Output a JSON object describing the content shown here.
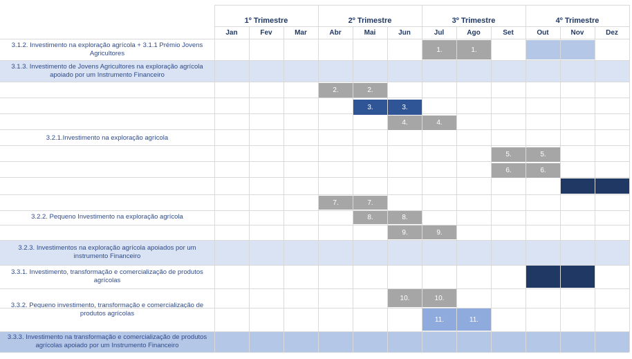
{
  "header": {
    "quarters": [
      "1º Trimestre",
      "2º Trimestre",
      "3º Trimestre",
      "4º Trimestre"
    ],
    "months": [
      "Jan",
      "Fev",
      "Mar",
      "Abr",
      "Mai",
      "Jun",
      "Jul",
      "Ago",
      "Set",
      "Out",
      "Nov",
      "Dez"
    ]
  },
  "rows": [
    {
      "label": "3.1.2. Investimento na exploração agrícola + 3.1.1 Prémio Jovens Agricultores"
    },
    {
      "label": "3.1.3. Investimento de Jovens Agricultores na exploração agrícola apoiado por um Instrumento Financeiro"
    },
    {
      "label": "3.2.1.Investimento na exploração agrícola"
    },
    {
      "label": "3.2.2. Pequeno Investimento na exploração agrícola"
    },
    {
      "label": "3.2.3. Investimentos na exploração agrícola apoiados por um instrumento Financeiro"
    },
    {
      "label": "3.3.1. Investimento, transformação e comercialização de produtos agrícolas"
    },
    {
      "label": "3.3.2. Pequeno investimento, transformação e comercialização de produtos agrícolas"
    },
    {
      "label": "3.3.3. Investimento na transformação e comercialização de produtos agrícolas apoiado por um Instrumento Financeiro"
    }
  ],
  "bars": [
    {
      "text": "1.",
      "color": "#a6a6a6"
    },
    {
      "text": "1.",
      "color": "#a6a6a6"
    },
    {
      "text": "",
      "color": "#b4c7e7"
    },
    {
      "text": "",
      "color": "#b4c7e7"
    },
    {
      "text": "2.",
      "color": "#a6a6a6"
    },
    {
      "text": "2.",
      "color": "#a6a6a6"
    },
    {
      "text": "3.",
      "color": "#2f5597"
    },
    {
      "text": "3.",
      "color": "#2f5597"
    },
    {
      "text": "4.",
      "color": "#a6a6a6"
    },
    {
      "text": "4.",
      "color": "#a6a6a6"
    },
    {
      "text": "5.",
      "color": "#a6a6a6"
    },
    {
      "text": "5.",
      "color": "#a6a6a6"
    },
    {
      "text": "6.",
      "color": "#a6a6a6"
    },
    {
      "text": "6.",
      "color": "#a6a6a6"
    },
    {
      "text": "",
      "color": "#1f3864"
    },
    {
      "text": "",
      "color": "#1f3864"
    },
    {
      "text": "7.",
      "color": "#a6a6a6"
    },
    {
      "text": "7.",
      "color": "#a6a6a6"
    },
    {
      "text": "8.",
      "color": "#a6a6a6"
    },
    {
      "text": "8.",
      "color": "#a6a6a6"
    },
    {
      "text": "9.",
      "color": "#a6a6a6"
    },
    {
      "text": "9.",
      "color": "#a6a6a6"
    },
    {
      "text": "",
      "color": "#1f3864"
    },
    {
      "text": "",
      "color": "#1f3864"
    },
    {
      "text": "10.",
      "color": "#a6a6a6"
    },
    {
      "text": "10.",
      "color": "#a6a6a6"
    },
    {
      "text": "11.",
      "color": "#8faadc"
    },
    {
      "text": "11.",
      "color": "#8faadc"
    }
  ],
  "band_colors": {
    "light_blue": "#dae3f3",
    "mid_blue": "#b4c7e7",
    "grid": "#d9d9d9"
  }
}
